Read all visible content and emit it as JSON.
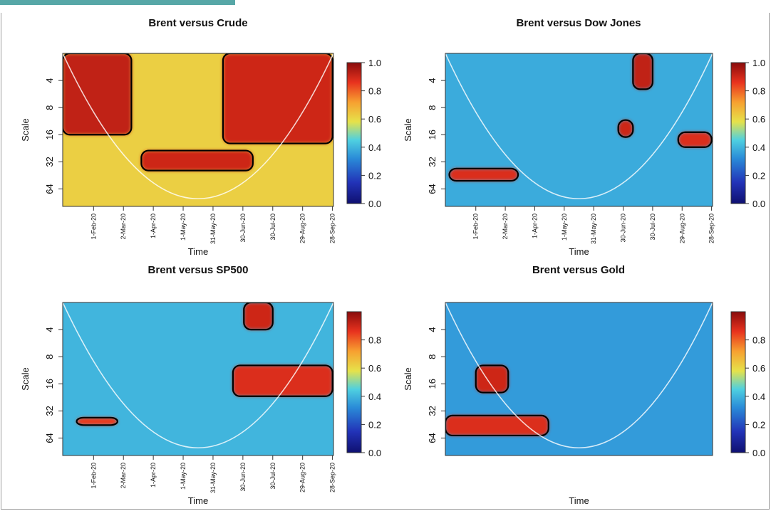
{
  "chart_data": [
    {
      "type": "heatmap",
      "title": "Brent versus Crude",
      "xlabel": "Time",
      "ylabel": "Scale",
      "y_ticks": [
        "4",
        "8",
        "16",
        "32",
        "64"
      ],
      "x_ticks": [
        "1-Feb-20",
        "2-Mar-20",
        "1-Apr-20",
        "1-May-20",
        "31-May-20",
        "30-Jun-20",
        "30-Jul-20",
        "29-Aug-20",
        "28-Sep-20"
      ],
      "colorbar_ticks": [
        "0.0",
        "0.2",
        "0.4",
        "0.6",
        "0.8",
        "1.0"
      ],
      "colorbar_range": [
        0,
        1
      ],
      "overall_coherence": 0.62,
      "high_coherence_regions": [
        {
          "from": "1-Jan-20",
          "to": "10-Mar-20",
          "scale_min": 2,
          "scale_max": 16,
          "value": 0.92
        },
        {
          "from": "20-Mar-20",
          "to": "10-Jul-20",
          "scale_min": 24,
          "scale_max": 40,
          "value": 0.9
        },
        {
          "from": "10-Jun-20",
          "to": "28-Sep-20",
          "scale_min": 2,
          "scale_max": 20,
          "value": 0.9
        }
      ]
    },
    {
      "type": "heatmap",
      "title": "Brent versus Dow Jones",
      "xlabel": "Time",
      "ylabel": "Scale",
      "y_ticks": [
        "4",
        "8",
        "16",
        "32",
        "64"
      ],
      "x_ticks": [
        "1-Feb-20",
        "2-Mar-20",
        "1-Apr-20",
        "1-May-20",
        "31-May-20",
        "30-Jun-20",
        "30-Jul-20",
        "29-Aug-20",
        "28-Sep-20"
      ],
      "colorbar_ticks": [
        "0.0",
        "0.2",
        "0.4",
        "0.6",
        "0.8",
        "1.0"
      ],
      "colorbar_range": [
        0,
        1
      ],
      "overall_coherence": 0.38,
      "high_coherence_regions": [
        {
          "from": "5-Jan-20",
          "to": "15-Mar-20",
          "scale_min": 38,
          "scale_max": 52,
          "value": 0.88
        },
        {
          "from": "10-Jul-20",
          "to": "30-Jul-20",
          "scale_min": 2,
          "scale_max": 5,
          "value": 0.92
        },
        {
          "from": "25-Jun-20",
          "to": "10-Jul-20",
          "scale_min": 11,
          "scale_max": 17,
          "value": 0.9
        },
        {
          "from": "25-Aug-20",
          "to": "28-Sep-20",
          "scale_min": 15,
          "scale_max": 22,
          "value": 0.88
        }
      ]
    },
    {
      "type": "heatmap",
      "title": "Brent versus SP500",
      "xlabel": "Time",
      "ylabel": "Scale",
      "y_ticks": [
        "4",
        "8",
        "16",
        "32",
        "64"
      ],
      "x_ticks": [
        "1-Feb-20",
        "2-Mar-20",
        "1-Apr-20",
        "1-May-20",
        "31-May-20",
        "30-Jun-20",
        "30-Jul-20",
        "29-Aug-20",
        "28-Sep-20"
      ],
      "colorbar_ticks": [
        "0.0",
        "0.2",
        "0.4",
        "0.6",
        "0.8"
      ],
      "colorbar_range": [
        0,
        1
      ],
      "overall_coherence": 0.4,
      "high_coherence_regions": [
        {
          "from": "15-Jan-20",
          "to": "25-Feb-20",
          "scale_min": 38,
          "scale_max": 46,
          "value": 0.85
        },
        {
          "from": "20-Jun-20",
          "to": "28-Sep-20",
          "scale_min": 10,
          "scale_max": 22,
          "value": 0.88
        },
        {
          "from": "1-Jul-20",
          "to": "30-Jul-20",
          "scale_min": 2,
          "scale_max": 4,
          "value": 0.9
        }
      ]
    },
    {
      "type": "heatmap",
      "title": "Brent versus Gold",
      "xlabel": "Time",
      "ylabel": "Scale",
      "y_ticks": [
        "4",
        "8",
        "16",
        "32",
        "64"
      ],
      "x_ticks": [],
      "colorbar_ticks": [
        "0.0",
        "0.2",
        "0.4",
        "0.6",
        "0.8"
      ],
      "colorbar_range": [
        0,
        1
      ],
      "overall_coherence": 0.35,
      "high_coherence_regions": [
        {
          "from": "1-Jan-20",
          "to": "15-Apr-20",
          "scale_min": 36,
          "scale_max": 60,
          "value": 0.88
        },
        {
          "from": "1-Feb-20",
          "to": "5-Mar-20",
          "scale_min": 10,
          "scale_max": 20,
          "value": 0.9
        }
      ]
    }
  ]
}
